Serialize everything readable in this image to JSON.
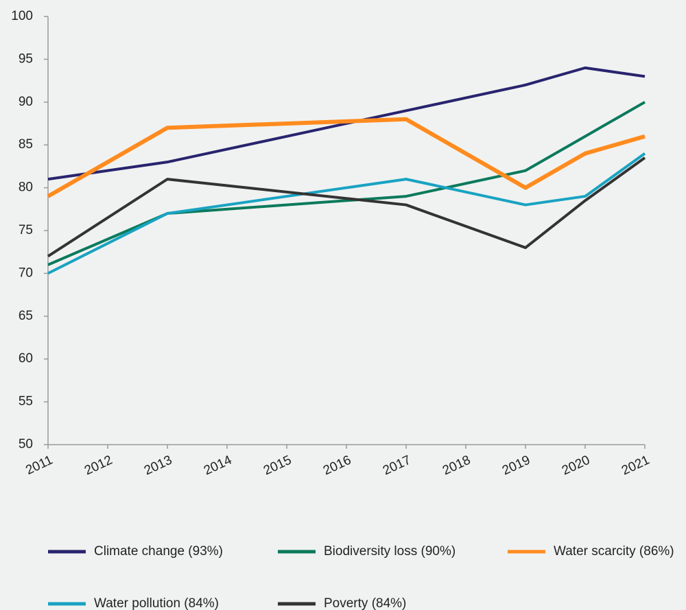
{
  "chart_data": {
    "type": "line",
    "x": [
      2011,
      2013,
      2017,
      2019,
      2020,
      2021
    ],
    "xlim": [
      2011,
      2021
    ],
    "xticks": [
      2011,
      2012,
      2013,
      2014,
      2015,
      2016,
      2017,
      2018,
      2019,
      2020,
      2021
    ],
    "ylim": [
      50,
      100
    ],
    "yticks": [
      50,
      55,
      60,
      65,
      70,
      75,
      80,
      85,
      90,
      95,
      100
    ],
    "grid": false,
    "legend": "bottom",
    "series": [
      {
        "name": "Climate change (93%)",
        "color": "#28246e",
        "values": [
          81,
          83,
          89,
          92,
          94,
          93
        ]
      },
      {
        "name": "Biodiversity loss (90%)",
        "color": "#0b7a5c",
        "values": [
          71,
          77,
          79,
          82,
          86,
          90
        ]
      },
      {
        "name": "Water scarcity (86%)",
        "color": "#ff8b1f",
        "values": [
          79,
          87,
          88,
          80,
          84,
          86
        ]
      },
      {
        "name": "Water pollution (84%)",
        "color": "#19a3c2",
        "values": [
          70,
          77,
          81,
          78,
          79,
          84
        ]
      },
      {
        "name": "Poverty (84%)",
        "color": "#333333",
        "values": [
          72,
          81,
          78,
          73,
          78.5,
          83.5
        ]
      }
    ]
  }
}
